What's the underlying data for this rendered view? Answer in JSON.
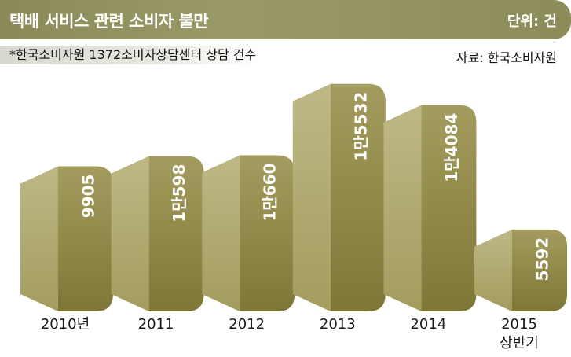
{
  "header": {
    "title": "택배 서비스 관련 소비자 불만",
    "unit": "단위: 건"
  },
  "subtitle": "*한국소비자원 1372소비자상담센터 상담 건수",
  "source": "자료: 한국소비자원",
  "colors": {
    "bar_light": "#bdb886",
    "bar_mid": "#a39c5e",
    "bar_dark": "#7e7736",
    "title_bar": "#8f8f5f"
  },
  "chart_data": {
    "type": "bar",
    "categories": [
      [
        "2010년"
      ],
      [
        "2011"
      ],
      [
        "2012"
      ],
      [
        "2013"
      ],
      [
        "2014"
      ],
      [
        "2015",
        "상반기"
      ]
    ],
    "values": [
      9905,
      10598,
      10660,
      15532,
      14084,
      5592
    ],
    "value_labels": [
      "9905",
      "1만598",
      "1만660",
      "1만5532",
      "1만4084",
      "5592"
    ],
    "title": "택배 서비스 관련 소비자 불만",
    "unit": "건",
    "grid": false,
    "legend": "none"
  }
}
